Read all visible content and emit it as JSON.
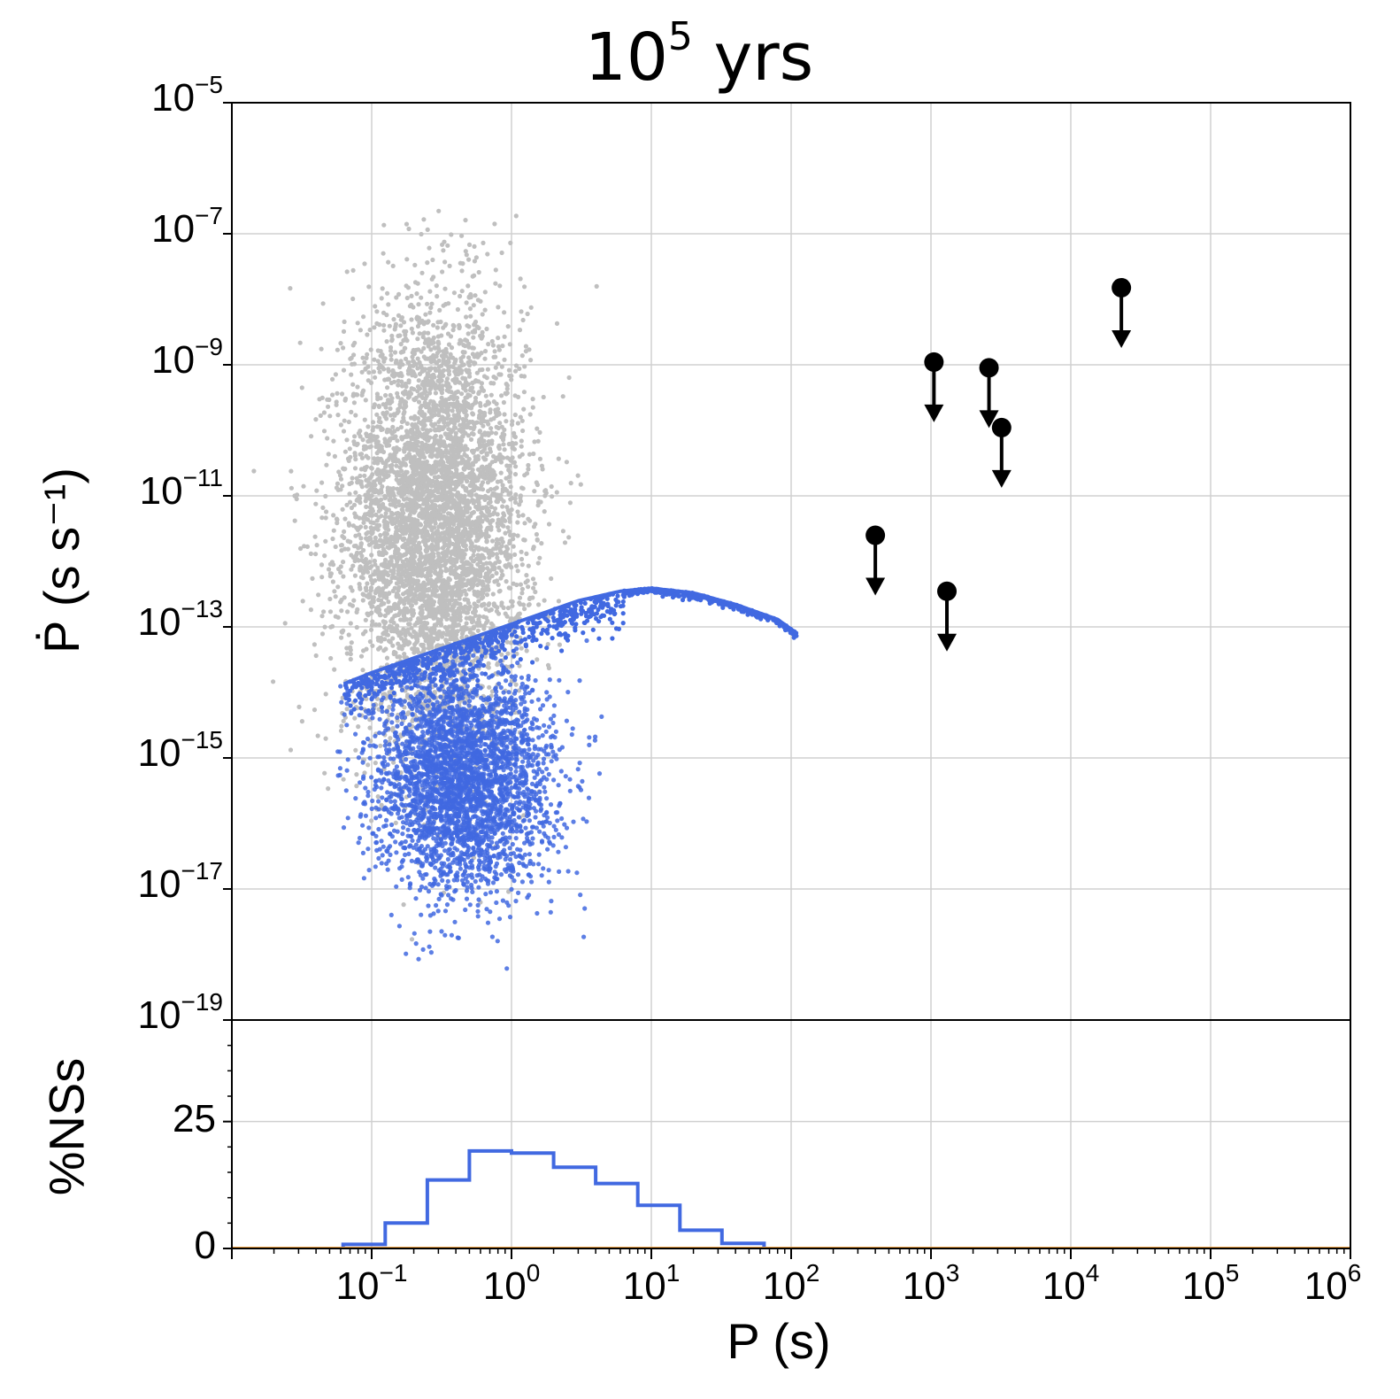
{
  "chart_data": [
    {
      "type": "scatter",
      "title_base": "10",
      "title_exp": "5",
      "title_unit": "yrs",
      "xlabel": "P (s)",
      "ylabel": "Ṗ (s s⁻¹)",
      "x_scale": "log",
      "y_scale": "log",
      "xlim": [
        0.01,
        1000000
      ],
      "ylim": [
        1e-19,
        1e-05
      ],
      "grid": true,
      "x_tick_labels": [
        {
          "base": "10",
          "exp": "−1",
          "value": 0.1
        },
        {
          "base": "10",
          "exp": "0",
          "value": 1
        },
        {
          "base": "10",
          "exp": "1",
          "value": 10
        },
        {
          "base": "10",
          "exp": "2",
          "value": 100
        },
        {
          "base": "10",
          "exp": "3",
          "value": 1000
        },
        {
          "base": "10",
          "exp": "4",
          "value": 10000
        },
        {
          "base": "10",
          "exp": "5",
          "value": 100000
        },
        {
          "base": "10",
          "exp": "6",
          "value": 1000000
        }
      ],
      "y_tick_labels": [
        {
          "base": "10",
          "exp": "−5",
          "value": 1e-05
        },
        {
          "base": "10",
          "exp": "−7",
          "value": 1e-07
        },
        {
          "base": "10",
          "exp": "−9",
          "value": 1e-09
        },
        {
          "base": "10",
          "exp": "−11",
          "value": 1e-11
        },
        {
          "base": "10",
          "exp": "−13",
          "value": 1e-13
        },
        {
          "base": "10",
          "exp": "−15",
          "value": 1e-15
        },
        {
          "base": "10",
          "exp": "−17",
          "value": 1e-17
        },
        {
          "base": "10",
          "exp": "−19",
          "value": 1e-19
        }
      ],
      "series": [
        {
          "color": "#bfbfbf",
          "kind": "initial population cloud",
          "log_center": [
            -0.55,
            -11.4
          ],
          "log_spread": [
            0.32,
            1.65
          ],
          "log_range_x": [
            -1.9,
            0.65
          ],
          "log_range_y": [
            -18.3,
            -6.6
          ]
        },
        {
          "color": "#4169e1",
          "kind": "evolved population",
          "cloud_log_center": [
            -0.35,
            -15.3
          ],
          "cloud_log_spread": [
            0.32,
            0.85
          ],
          "upper_envelope": [
            {
              "P": 0.05,
              "Pdot": 1.1e-14
            },
            {
              "P": 0.1,
              "Pdot": 2e-14
            },
            {
              "P": 0.3,
              "Pdot": 4.5e-14
            },
            {
              "P": 1.0,
              "Pdot": 1.1e-13
            },
            {
              "P": 3.0,
              "Pdot": 2.5e-13
            },
            {
              "P": 6.0,
              "Pdot": 3.5e-13
            },
            {
              "P": 10.0,
              "Pdot": 3.9e-13
            },
            {
              "P": 20.0,
              "Pdot": 3.3e-13
            },
            {
              "P": 40.0,
              "Pdot": 2.2e-13
            },
            {
              "P": 80.0,
              "Pdot": 1.3e-13
            },
            {
              "P": 110.0,
              "Pdot": 8e-14
            }
          ]
        },
        {
          "color": "#000000",
          "kind": "upper limits",
          "points": [
            {
              "P": 400,
              "Pdot": 2.5e-12
            },
            {
              "P": 1050,
              "Pdot": 1.1e-09
            },
            {
              "P": 1300,
              "Pdot": 3.5e-13
            },
            {
              "P": 2600,
              "Pdot": 9e-10
            },
            {
              "P": 3200,
              "Pdot": 1.1e-10
            },
            {
              "P": 23000,
              "Pdot": 1.5e-08
            }
          ]
        }
      ]
    },
    {
      "type": "histogram",
      "ylabel": "%NSs",
      "x_scale": "log",
      "xlim": [
        0.01,
        1000000
      ],
      "ylim": [
        0,
        45
      ],
      "y_tick_labels": [
        "0",
        "25"
      ],
      "y_tick_values": [
        0,
        25
      ],
      "color": "#4169e1",
      "bin_edges": [
        0.0625,
        0.125,
        0.25,
        0.5,
        1.0,
        2.0,
        4.0,
        8.0,
        16.0,
        32.0,
        64.0
      ],
      "values": [
        0.8,
        5.0,
        13.5,
        19.2,
        18.8,
        16.0,
        12.8,
        8.5,
        3.6,
        1.0
      ]
    }
  ]
}
